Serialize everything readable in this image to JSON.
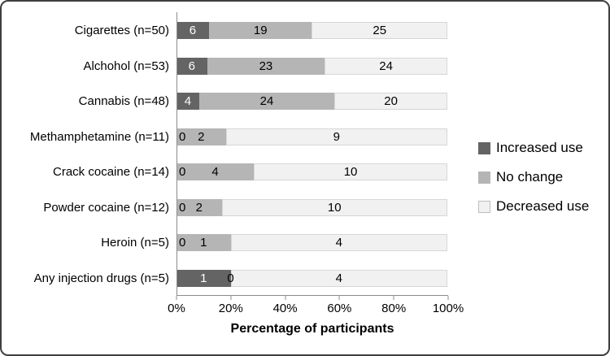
{
  "chart_data": {
    "type": "bar",
    "orientation": "horizontal",
    "stacked_percent": true,
    "xlabel": "Percentage of participants",
    "xlim": [
      0,
      100
    ],
    "x_ticks": [
      "0%",
      "20%",
      "40%",
      "60%",
      "80%",
      "100%"
    ],
    "legend_position": "right",
    "grid": false,
    "categories": [
      "Cigarettes (n=50)",
      "Alchohol (n=53)",
      "Cannabis (n=48)",
      "Methamphetamine (n=11)",
      "Crack cocaine (n=14)",
      "Powder cocaine (n=12)",
      "Heroin (n=5)",
      "Any injection drugs (n=5)"
    ],
    "series": [
      {
        "name": "Increased use",
        "color": "#646464",
        "label_color": "#ffffff",
        "values": [
          6,
          6,
          4,
          0,
          0,
          0,
          0,
          1
        ]
      },
      {
        "name": "No change",
        "color": "#b5b5b5",
        "label_color": "#000000",
        "values": [
          19,
          23,
          24,
          2,
          4,
          2,
          1,
          0
        ]
      },
      {
        "name": "Decreased use",
        "color": "#f1f1f1",
        "swatch_border": "#bdbdbd",
        "label_color": "#000000",
        "values": [
          25,
          24,
          20,
          9,
          10,
          10,
          4,
          4
        ]
      }
    ]
  }
}
